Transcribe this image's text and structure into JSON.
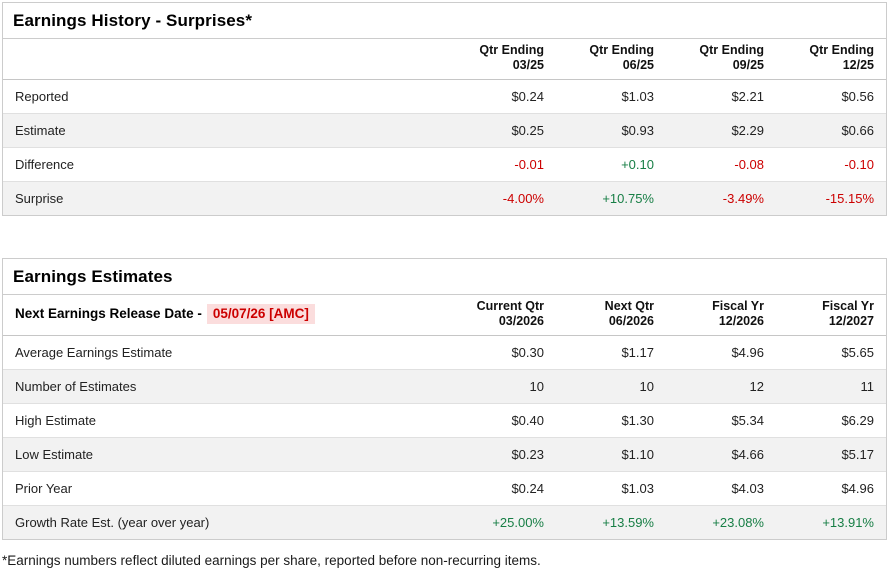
{
  "colors": {
    "positive": "#177e45",
    "negative": "#cc0000",
    "highlight_bg": "#fbdddd",
    "alt_row_bg": "#f2f2f2",
    "border": "#cccccc"
  },
  "surprises_table": {
    "title": "Earnings History - Surprises*",
    "columns": [
      {
        "line1": "Qtr Ending",
        "line2": "03/25"
      },
      {
        "line1": "Qtr Ending",
        "line2": "06/25"
      },
      {
        "line1": "Qtr Ending",
        "line2": "09/25"
      },
      {
        "line1": "Qtr Ending",
        "line2": "12/25"
      }
    ],
    "rows": [
      {
        "label": "Reported",
        "values": [
          "$0.24",
          "$1.03",
          "$2.21",
          "$0.56"
        ],
        "tones": [
          "neutral",
          "neutral",
          "neutral",
          "neutral"
        ]
      },
      {
        "label": "Estimate",
        "values": [
          "$0.25",
          "$0.93",
          "$2.29",
          "$0.66"
        ],
        "tones": [
          "neutral",
          "neutral",
          "neutral",
          "neutral"
        ]
      },
      {
        "label": "Difference",
        "values": [
          "-0.01",
          "+0.10",
          "-0.08",
          "-0.10"
        ],
        "tones": [
          "negative",
          "positive",
          "negative",
          "negative"
        ]
      },
      {
        "label": "Surprise",
        "values": [
          "-4.00%",
          "+10.75%",
          "-3.49%",
          "-15.15%"
        ],
        "tones": [
          "negative",
          "positive",
          "negative",
          "negative"
        ]
      }
    ]
  },
  "estimates_table": {
    "title": "Earnings Estimates",
    "release_date_label": "Next Earnings Release Date -",
    "release_date_value": "05/07/26 [AMC]",
    "columns": [
      {
        "line1": "Current Qtr",
        "line2": "03/2026"
      },
      {
        "line1": "Next Qtr",
        "line2": "06/2026"
      },
      {
        "line1": "Fiscal Yr",
        "line2": "12/2026"
      },
      {
        "line1": "Fiscal Yr",
        "line2": "12/2027"
      }
    ],
    "rows": [
      {
        "label": "Average Earnings Estimate",
        "values": [
          "$0.30",
          "$1.17",
          "$4.96",
          "$5.65"
        ],
        "tones": [
          "neutral",
          "neutral",
          "neutral",
          "neutral"
        ]
      },
      {
        "label": "Number of Estimates",
        "values": [
          "10",
          "10",
          "12",
          "11"
        ],
        "tones": [
          "neutral",
          "neutral",
          "neutral",
          "neutral"
        ]
      },
      {
        "label": "High Estimate",
        "values": [
          "$0.40",
          "$1.30",
          "$5.34",
          "$6.29"
        ],
        "tones": [
          "neutral",
          "neutral",
          "neutral",
          "neutral"
        ]
      },
      {
        "label": "Low Estimate",
        "values": [
          "$0.23",
          "$1.10",
          "$4.66",
          "$5.17"
        ],
        "tones": [
          "neutral",
          "neutral",
          "neutral",
          "neutral"
        ]
      },
      {
        "label": "Prior Year",
        "values": [
          "$0.24",
          "$1.03",
          "$4.03",
          "$4.96"
        ],
        "tones": [
          "neutral",
          "neutral",
          "neutral",
          "neutral"
        ]
      },
      {
        "label": "Growth Rate Est. (year over year)",
        "values": [
          "+25.00%",
          "+13.59%",
          "+23.08%",
          "+13.91%"
        ],
        "tones": [
          "positive",
          "positive",
          "positive",
          "positive"
        ]
      }
    ]
  },
  "footnote": "*Earnings numbers reflect diluted earnings per share, reported before non-recurring items."
}
